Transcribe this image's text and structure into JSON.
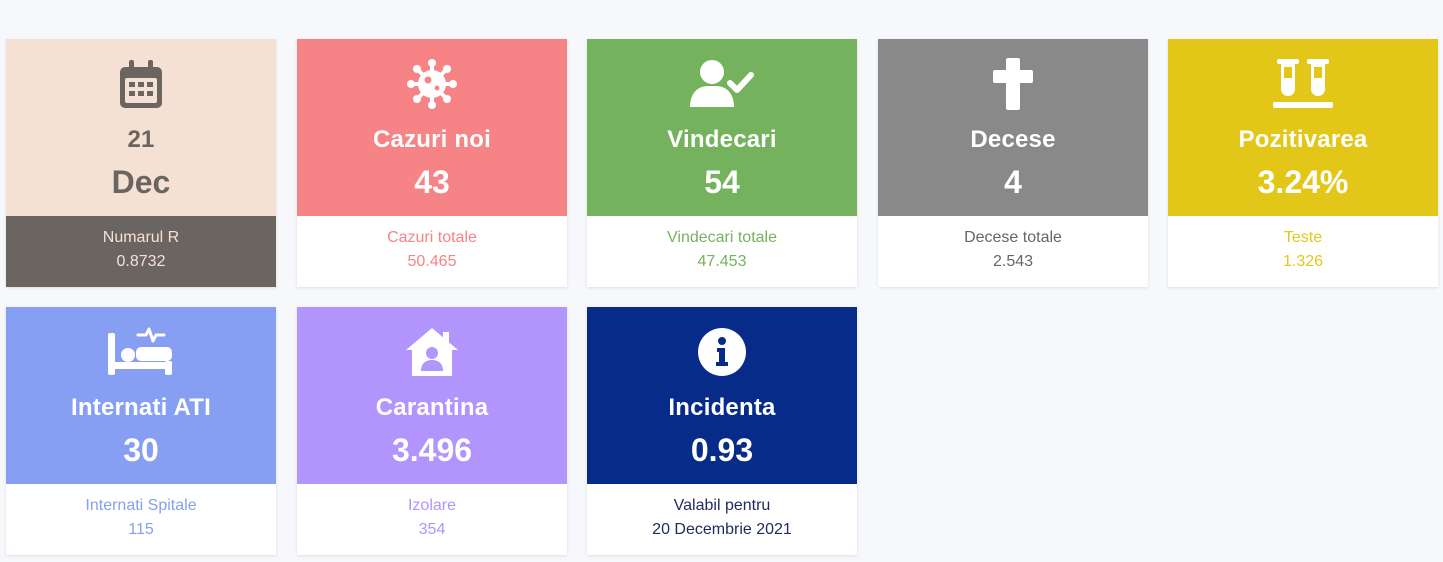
{
  "cards": [
    {
      "label": "21",
      "value": "Dec",
      "icon": "calendar-icon",
      "sub_label": "Numarul R",
      "sub_value": "0.8732",
      "color": "#f5e1d3",
      "text_color": "#6b6562",
      "bottom_bg": "#6b6562",
      "bottom_text": "#f5e1d3"
    },
    {
      "label": "Cazuri noi",
      "value": "43",
      "icon": "virus-icon",
      "sub_label": "Cazuri totale",
      "sub_value": "50.465",
      "color": "#f68486",
      "text_color": "#ffffff",
      "bottom_bg": "#ffffff",
      "bottom_text": "#f68486"
    },
    {
      "label": "Vindecari",
      "value": "54",
      "icon": "user-check-icon",
      "sub_label": "Vindecari totale",
      "sub_value": "47.453",
      "color": "#75b25d",
      "text_color": "#ffffff",
      "bottom_bg": "#ffffff",
      "bottom_text": "#75b25d"
    },
    {
      "label": "Decese",
      "value": "4",
      "icon": "cross-icon",
      "sub_label": "Decese totale",
      "sub_value": "2.543",
      "color": "#898989",
      "text_color": "#ffffff",
      "bottom_bg": "#ffffff",
      "bottom_text": "#666666"
    },
    {
      "label": "Pozitivarea",
      "value": "3.24%",
      "icon": "test-tubes-icon",
      "sub_label": "Teste",
      "sub_value": "1.326",
      "color": "#e3c718",
      "text_color": "#ffffff",
      "bottom_bg": "#ffffff",
      "bottom_text": "#e3c718"
    },
    {
      "label": "Internati ATI",
      "value": "30",
      "icon": "hospital-bed-icon",
      "sub_label": "Internati Spitale",
      "sub_value": "115",
      "color": "#879ff2",
      "text_color": "#ffffff",
      "bottom_bg": "#ffffff",
      "bottom_text": "#879ff2"
    },
    {
      "label": "Carantina",
      "value": "3.496",
      "icon": "house-user-icon",
      "sub_label": "Izolare",
      "sub_value": "354",
      "color": "#b194fc",
      "text_color": "#ffffff",
      "bottom_bg": "#ffffff",
      "bottom_text": "#b194fc"
    },
    {
      "label": "Incidenta",
      "value": "0.93",
      "icon": "info-icon",
      "sub_label": "Valabil pentru",
      "sub_value": "20 Decembrie 2021",
      "color": "#062b88",
      "text_color": "#ffffff",
      "bottom_bg": "#ffffff",
      "bottom_text": "#1f2a5e"
    }
  ]
}
